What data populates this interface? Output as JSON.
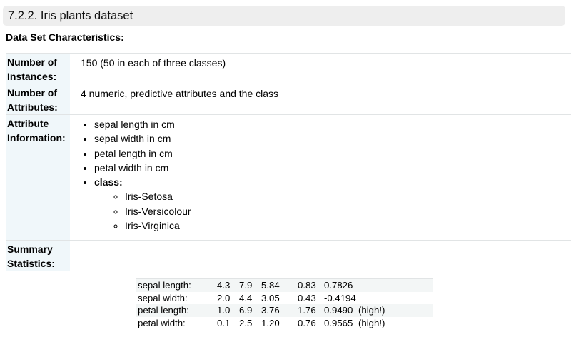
{
  "section_title": "7.2.2. Iris plants dataset",
  "characteristics_heading": "Data Set Characteristics:",
  "fields": {
    "instances": {
      "name_line1": "Number of",
      "name_line2": "Instances:",
      "value": "150 (50 in each of three classes)"
    },
    "attributes": {
      "name_line1": "Number of",
      "name_line2": "Attributes:",
      "value": "4 numeric, predictive attributes and the class"
    },
    "attribute_info": {
      "name_line1": "Attribute",
      "name_line2": "Information:",
      "items": [
        "sepal length in cm",
        "sepal width in cm",
        "petal length in cm",
        "petal width in cm"
      ],
      "class_label": "class:",
      "classes": [
        "Iris-Setosa",
        "Iris-Versicolour",
        "Iris-Virginica"
      ]
    },
    "summary": {
      "name_line1": "Summary",
      "name_line2": "Statistics:"
    }
  },
  "stats": {
    "rows": [
      [
        "sepal length:",
        "4.3",
        "7.9",
        "5.84",
        "0.83",
        "0.7826",
        ""
      ],
      [
        "sepal width:",
        "2.0",
        "4.4",
        "3.05",
        "0.43",
        "-0.4194",
        ""
      ],
      [
        "petal length:",
        "1.0",
        "6.9",
        "3.76",
        "1.76",
        "0.9490",
        "(high!)"
      ],
      [
        "petal width:",
        "0.1",
        "2.5",
        "1.20",
        "0.76",
        "0.9565",
        "(high!)"
      ]
    ]
  }
}
